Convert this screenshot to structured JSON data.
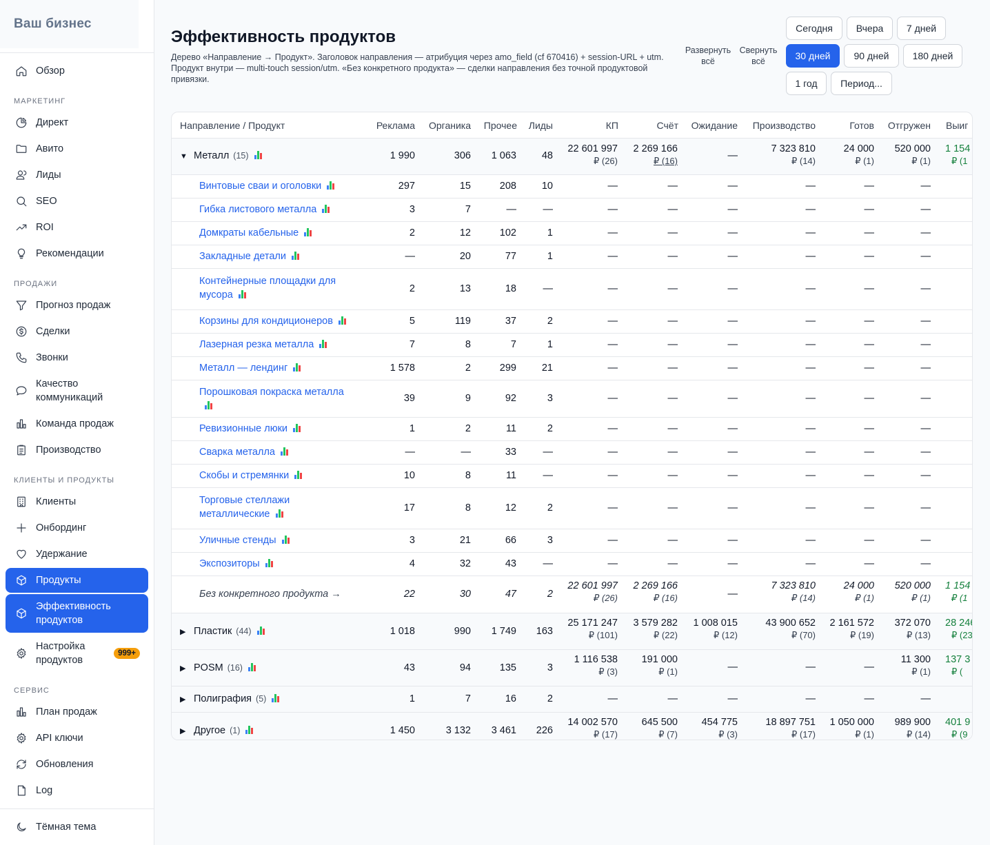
{
  "sidebar": {
    "brand": "Ваш бизнес",
    "overview": "Обзор",
    "sections": {
      "marketing": "МАРКЕТИНГ",
      "sales": "ПРОДАЖИ",
      "clients": "КЛИЕНТЫ И ПРОДУКТЫ",
      "service": "СЕРВИС"
    },
    "items": {
      "direct": "Директ",
      "avito": "Авито",
      "leads": "Лиды",
      "seo": "SEO",
      "roi": "ROI",
      "recs": "Рекомендации",
      "forecast": "Прогноз продаж",
      "deals": "Сделки",
      "calls": "Звонки",
      "quality_1": "Качество",
      "quality_2": "коммуникаций",
      "team": "Команда продаж",
      "production": "Производство",
      "clients": "Клиенты",
      "onboarding": "Онбординг",
      "retention": "Удержание",
      "products": "Продукты",
      "efficiency_1": "Эффективность",
      "efficiency_2": "продуктов",
      "settings_1": "Настройка",
      "settings_2": "продуктов",
      "settings_badge": "999+",
      "plan": "План продаж",
      "api": "API ключи",
      "updates": "Обновления",
      "log": "Log"
    },
    "dark_theme": "Тёмная тема"
  },
  "page": {
    "title": "Эффективность продуктов",
    "subtitle": "Дерево «Направление → Продукт». Заголовок направления — атрибуция через amo_field (cf 670416) + session-URL + utm. Продукт внутри — multi-touch session/utm. «Без конкретного продукта» — сделки направления без точной продуктовой привязки.",
    "expand_1": "Развернуть",
    "expand_2": "всё",
    "collapse_1": "Свернуть",
    "collapse_2": "всё"
  },
  "periods": {
    "today": "Сегодня",
    "yesterday": "Вчера",
    "d7": "7 дней",
    "d30": "30 дней",
    "d90": "90 дней",
    "d180": "180 дней",
    "y1": "1 год",
    "custom": "Период..."
  },
  "table": {
    "headers": {
      "name": "Направление / Продукт",
      "ads": "Реклама",
      "organic": "Органика",
      "other": "Прочее",
      "leads": "Лиды",
      "kp": "КП",
      "invoice": "Счёт",
      "waiting": "Ожидание",
      "production": "Производство",
      "ready": "Готов",
      "shipped": "Отгружен",
      "won": "Выиг"
    },
    "metal": {
      "name": "Металл",
      "count": "(15)",
      "ads": "1 990",
      "organic": "306",
      "other": "1 063",
      "leads": "48",
      "kp": "22 601 997",
      "kp_sub": "₽ (26)",
      "inv": "2 269 166",
      "inv_sub": "₽ (16)",
      "wait": "—",
      "prod": "7 323 810",
      "prod_sub": "₽ (14)",
      "ready": "24 000",
      "ready_sub": "₽ (1)",
      "ship": "520 000",
      "ship_sub": "₽ (1)",
      "won": "1 154",
      "won_sub": "₽ (1"
    },
    "products": [
      {
        "name": "Винтовые сваи и оголовки",
        "ads": "297",
        "organic": "15",
        "other": "208",
        "leads": "10"
      },
      {
        "name": "Гибка листового металла",
        "ads": "3",
        "organic": "7",
        "other": "—",
        "leads": "—"
      },
      {
        "name": "Домкраты кабельные",
        "ads": "2",
        "organic": "12",
        "other": "102",
        "leads": "1"
      },
      {
        "name": "Закладные детали",
        "ads": "—",
        "organic": "20",
        "other": "77",
        "leads": "1"
      },
      {
        "name_1": "Контейнерные площадки для",
        "name_2": "мусора",
        "ads": "2",
        "organic": "13",
        "other": "18",
        "leads": "—"
      },
      {
        "name": "Корзины для кондиционеров",
        "ads": "5",
        "organic": "119",
        "other": "37",
        "leads": "2"
      },
      {
        "name": "Лазерная резка металла",
        "ads": "7",
        "organic": "8",
        "other": "7",
        "leads": "1"
      },
      {
        "name": "Металл — лендинг",
        "ads": "1 578",
        "organic": "2",
        "other": "299",
        "leads": "21"
      },
      {
        "name_1": "Порошковая покраска металла",
        "name_2": "",
        "ads": "39",
        "organic": "9",
        "other": "92",
        "leads": "3"
      },
      {
        "name": "Ревизионные люки",
        "ads": "1",
        "organic": "2",
        "other": "11",
        "leads": "2"
      },
      {
        "name": "Сварка металла",
        "ads": "—",
        "organic": "—",
        "other": "33",
        "leads": "—"
      },
      {
        "name": "Скобы и стремянки",
        "ads": "10",
        "organic": "8",
        "other": "11",
        "leads": "—"
      },
      {
        "name_1": "Торговые стеллажи",
        "name_2": "металлические",
        "ads": "17",
        "organic": "8",
        "other": "12",
        "leads": "2"
      },
      {
        "name": "Уличные стенды",
        "ads": "3",
        "organic": "21",
        "other": "66",
        "leads": "3"
      },
      {
        "name": "Экспозиторы",
        "ads": "4",
        "organic": "32",
        "other": "43",
        "leads": "—"
      }
    ],
    "dash": "—",
    "no_product": {
      "name": "Без конкретного продукта →",
      "ads": "22",
      "organic": "30",
      "other": "47",
      "leads": "2",
      "kp": "22 601 997",
      "kp_sub": "₽ (26)",
      "inv": "2 269 166",
      "inv_sub": "₽ (16)",
      "wait": "—",
      "prod": "7 323 810",
      "prod_sub": "₽ (14)",
      "ready": "24 000",
      "ready_sub": "₽ (1)",
      "ship": "520 000",
      "ship_sub": "₽ (1)",
      "won": "1 154",
      "won_sub": "₽ (1"
    },
    "plastic": {
      "name": "Пластик",
      "count": "(44)",
      "ads": "1 018",
      "organic": "990",
      "other": "1 749",
      "leads": "163",
      "kp": "25 171 247",
      "kp_sub": "₽ (101)",
      "inv": "3 579 282",
      "inv_sub": "₽ (22)",
      "wait": "1 008 015",
      "wait_sub": "₽ (12)",
      "prod": "43 900 652",
      "prod_sub": "₽ (70)",
      "ready": "2 161 572",
      "ready_sub": "₽ (19)",
      "ship": "372 070",
      "ship_sub": "₽ (13)",
      "won": "28 246",
      "won_sub": "₽ (23"
    },
    "posm": {
      "name": "POSM",
      "count": "(16)",
      "ads": "43",
      "organic": "94",
      "other": "135",
      "leads": "3",
      "kp": "1 116 538",
      "kp_sub": "₽ (3)",
      "inv": "191 000",
      "inv_sub": "₽ (1)",
      "wait": "—",
      "prod": "—",
      "ready": "—",
      "ship": "11 300",
      "ship_sub": "₽ (1)",
      "won": "137 3",
      "won_sub": "₽ ("
    },
    "poly": {
      "name": "Полиграфия",
      "count": "(5)",
      "ads": "1",
      "organic": "7",
      "other": "16",
      "leads": "2"
    },
    "other_dir": {
      "name": "Другое",
      "count": "(1)",
      "ads": "1 450",
      "organic": "3 132",
      "other": "3 461",
      "leads": "226",
      "kp": "14 002 570",
      "kp_sub": "₽ (17)",
      "inv": "645 500",
      "inv_sub": "₽ (7)",
      "wait": "454 775",
      "wait_sub": "₽ (3)",
      "prod": "18 897 751",
      "prod_sub": "₽ (17)",
      "ready": "1 050 000",
      "ready_sub": "₽ (1)",
      "ship": "989 900",
      "ship_sub": "₽ (14)",
      "won": "401 9",
      "won_sub": "₽ (9"
    }
  },
  "icons": {
    "chart": "bar-chart-icon",
    "expand": "triangle-right-icon",
    "collapse": "triangle-down-icon"
  }
}
